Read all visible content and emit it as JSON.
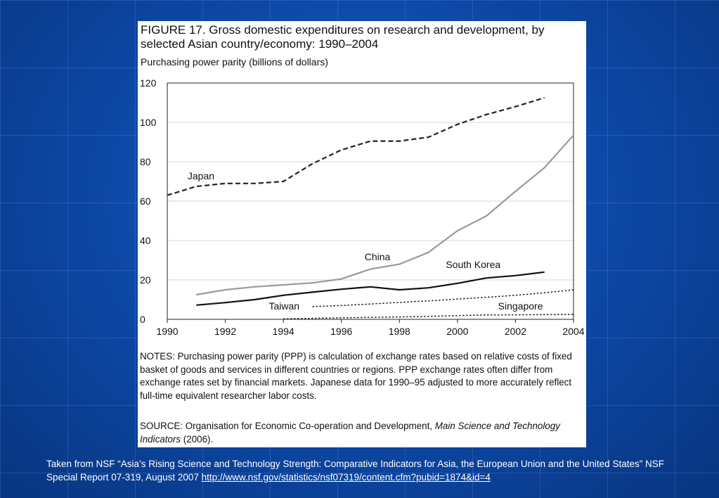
{
  "figure": {
    "title": "FIGURE 17. Gross domestic expenditures on research and development, by selected Asian country/economy: 1990–2004",
    "notes": "NOTES: Purchasing power parity (PPP) is calculation of exchange rates based on relative costs of fixed basket of goods and services in different countries or regions. PPP exchange rates often differ from exchange rates set by financial markets. Japanese data for 1990–95 adjusted to more accurately reflect full-time equivalent researcher labor costs.",
    "source_prefix": "SOURCE: Organisation for Economic Co-operation and Development, ",
    "source_title": "Main Science and Technology Indicators",
    "source_suffix": " (2006)."
  },
  "caption": {
    "text": "Taken from NSF “Asia’s Rising Science and Technology Strength: Comparative Indicators for Asia, the European Union and the United States”  NSF Special Report 07-319, August 2007  ",
    "link": "http://www.nsf.gov/statistics/nsf07319/content.cfm?pubid=1874&id=4"
  },
  "chart_data": {
    "type": "line",
    "title": "FIGURE 17. Gross domestic expenditures on research and development, by selected Asian country/economy: 1990–2004",
    "subtitle": "Purchasing power parity (billions of dollars)",
    "xlabel": "",
    "ylabel": "",
    "xlim": [
      1990,
      2004
    ],
    "ylim": [
      0,
      120
    ],
    "x_ticks": [
      "1990",
      "1992",
      "1994",
      "1996",
      "1998",
      "2000",
      "2002",
      "2004"
    ],
    "y_ticks": [
      "0",
      "20",
      "40",
      "60",
      "80",
      "100",
      "120"
    ],
    "grid": true,
    "legend": "inline labels",
    "series": [
      {
        "name": "Japan",
        "style": "dashed",
        "color": "#222222",
        "x": [
          1990,
          1991,
          1992,
          1993,
          1994,
          1995,
          1996,
          1997,
          1998,
          1999,
          2000,
          2001,
          2002,
          2003
        ],
        "y": [
          63,
          67.5,
          69,
          69,
          70,
          79,
          86,
          90.5,
          90.5,
          92.5,
          99,
          104,
          108,
          112.5
        ]
      },
      {
        "name": "China",
        "style": "solid",
        "color": "#9a9a9a",
        "x": [
          1991,
          1992,
          1993,
          1994,
          1995,
          1996,
          1997,
          1998,
          1999,
          2000,
          2001,
          2002,
          2003,
          2004
        ],
        "y": [
          12.5,
          15,
          16.5,
          17.5,
          18.5,
          20.5,
          25.5,
          28,
          34,
          45,
          52.5,
          65,
          77,
          93.5
        ]
      },
      {
        "name": "South Korea",
        "style": "solid",
        "color": "#111111",
        "x": [
          1991,
          1992,
          1993,
          1994,
          1995,
          1996,
          1997,
          1998,
          1999,
          2000,
          2001,
          2002,
          2003
        ],
        "y": [
          7.2,
          8.5,
          10,
          12.2,
          13.8,
          15.3,
          16.5,
          15,
          16,
          18.3,
          21,
          22.2,
          24
        ]
      },
      {
        "name": "Taiwan",
        "style": "dotted",
        "color": "#222222",
        "x": [
          1995,
          1996,
          1997,
          1998,
          1999,
          2000,
          2001,
          2002,
          2003,
          2004
        ],
        "y": [
          6.5,
          7,
          7.8,
          8.6,
          9.4,
          10.3,
          11.2,
          12.2,
          13.5,
          15
        ]
      },
      {
        "name": "Singapore",
        "style": "dotted",
        "color": "#222222",
        "x": [
          1994,
          1995,
          1996,
          1997,
          1998,
          1999,
          2000,
          2001,
          2002,
          2003,
          2004
        ],
        "y": [
          0.3,
          0.5,
          0.8,
          1,
          1.2,
          1.5,
          1.9,
          2.2,
          2.3,
          2.4,
          2.5
        ]
      }
    ]
  }
}
